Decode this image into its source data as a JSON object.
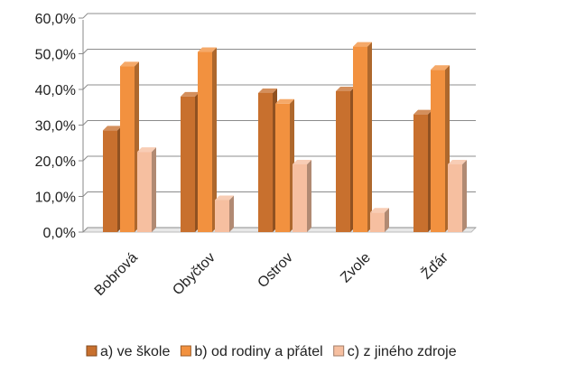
{
  "chart_data": {
    "type": "bar",
    "categories": [
      "Bobrová",
      "Obyčtov",
      "Ostrov",
      "Zvole",
      "Žďár"
    ],
    "series": [
      {
        "name": "a) ve škole",
        "values": [
          28.5,
          38.0,
          39.0,
          39.5,
          33.0
        ],
        "color": "#C8702E"
      },
      {
        "name": "b) od rodiny a přátel",
        "values": [
          46.5,
          50.5,
          36.0,
          52.0,
          45.5
        ],
        "color": "#F2913F"
      },
      {
        "name": "c) z jiného zdroje",
        "values": [
          22.5,
          9.0,
          19.0,
          5.5,
          19.0
        ],
        "color": "#F6BFA0"
      }
    ],
    "yticks": [
      "0,0%",
      "10,0%",
      "20,0%",
      "30,0%",
      "40,0%",
      "50,0%",
      "60,0%"
    ],
    "ylim": [
      0,
      60
    ],
    "grid": true,
    "legend_position": "bottom"
  }
}
